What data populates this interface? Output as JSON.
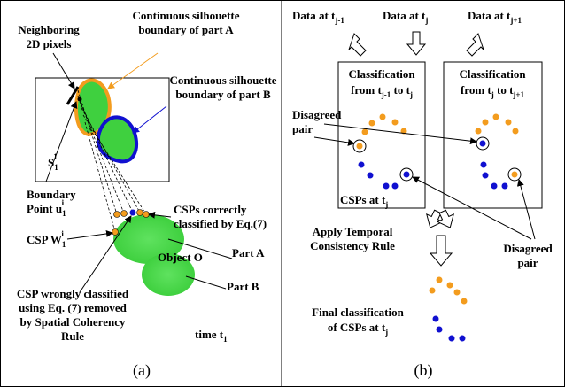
{
  "panel_a": {
    "neighboring": [
      "Neighboring",
      "2D pixels"
    ],
    "boundary_a": [
      "Continuous silhouette",
      "boundary of part A"
    ],
    "boundary_b": [
      "Continuous silhouette",
      "boundary of part B"
    ],
    "silhouette": [
      "S",
      "1",
      "1"
    ],
    "boundary_point": [
      "Boundary",
      "Point u",
      "1",
      "i"
    ],
    "csps_correct": [
      "CSPs correctly",
      "classified by Eq.(7)"
    ],
    "csp_w": [
      "CSP W",
      "1",
      "i"
    ],
    "part_a": "Part A",
    "object": "Object O",
    "part_b": "Part B",
    "csp_wrong": [
      "CSP wrongly classified",
      "using Eq. (7)  removed",
      "by Spatial Coherency",
      "Rule"
    ],
    "time": [
      "time t",
      "1"
    ],
    "caption": "(a)"
  },
  "panel_b": {
    "data": [
      [
        "Data at t",
        "j-1"
      ],
      [
        "Data at t",
        "j"
      ],
      [
        "Data at t",
        "j+1"
      ]
    ],
    "classification_left": [
      "Classification",
      "from  t",
      "j-1",
      " to  t",
      "j"
    ],
    "classification_right": [
      "Classification",
      "from  t",
      "j",
      " to t",
      "j+1"
    ],
    "disagreed_left": [
      "Disagreed",
      "pair"
    ],
    "csps_at": [
      "CSPs at t",
      "j"
    ],
    "disagreed_right": [
      "Disagreed",
      "pair"
    ],
    "temporal": [
      "Apply Temporal",
      "Consistency Rule"
    ],
    "final": [
      "Final classification",
      "of  CSPs  at  t",
      "j"
    ],
    "caption": "(b)"
  }
}
